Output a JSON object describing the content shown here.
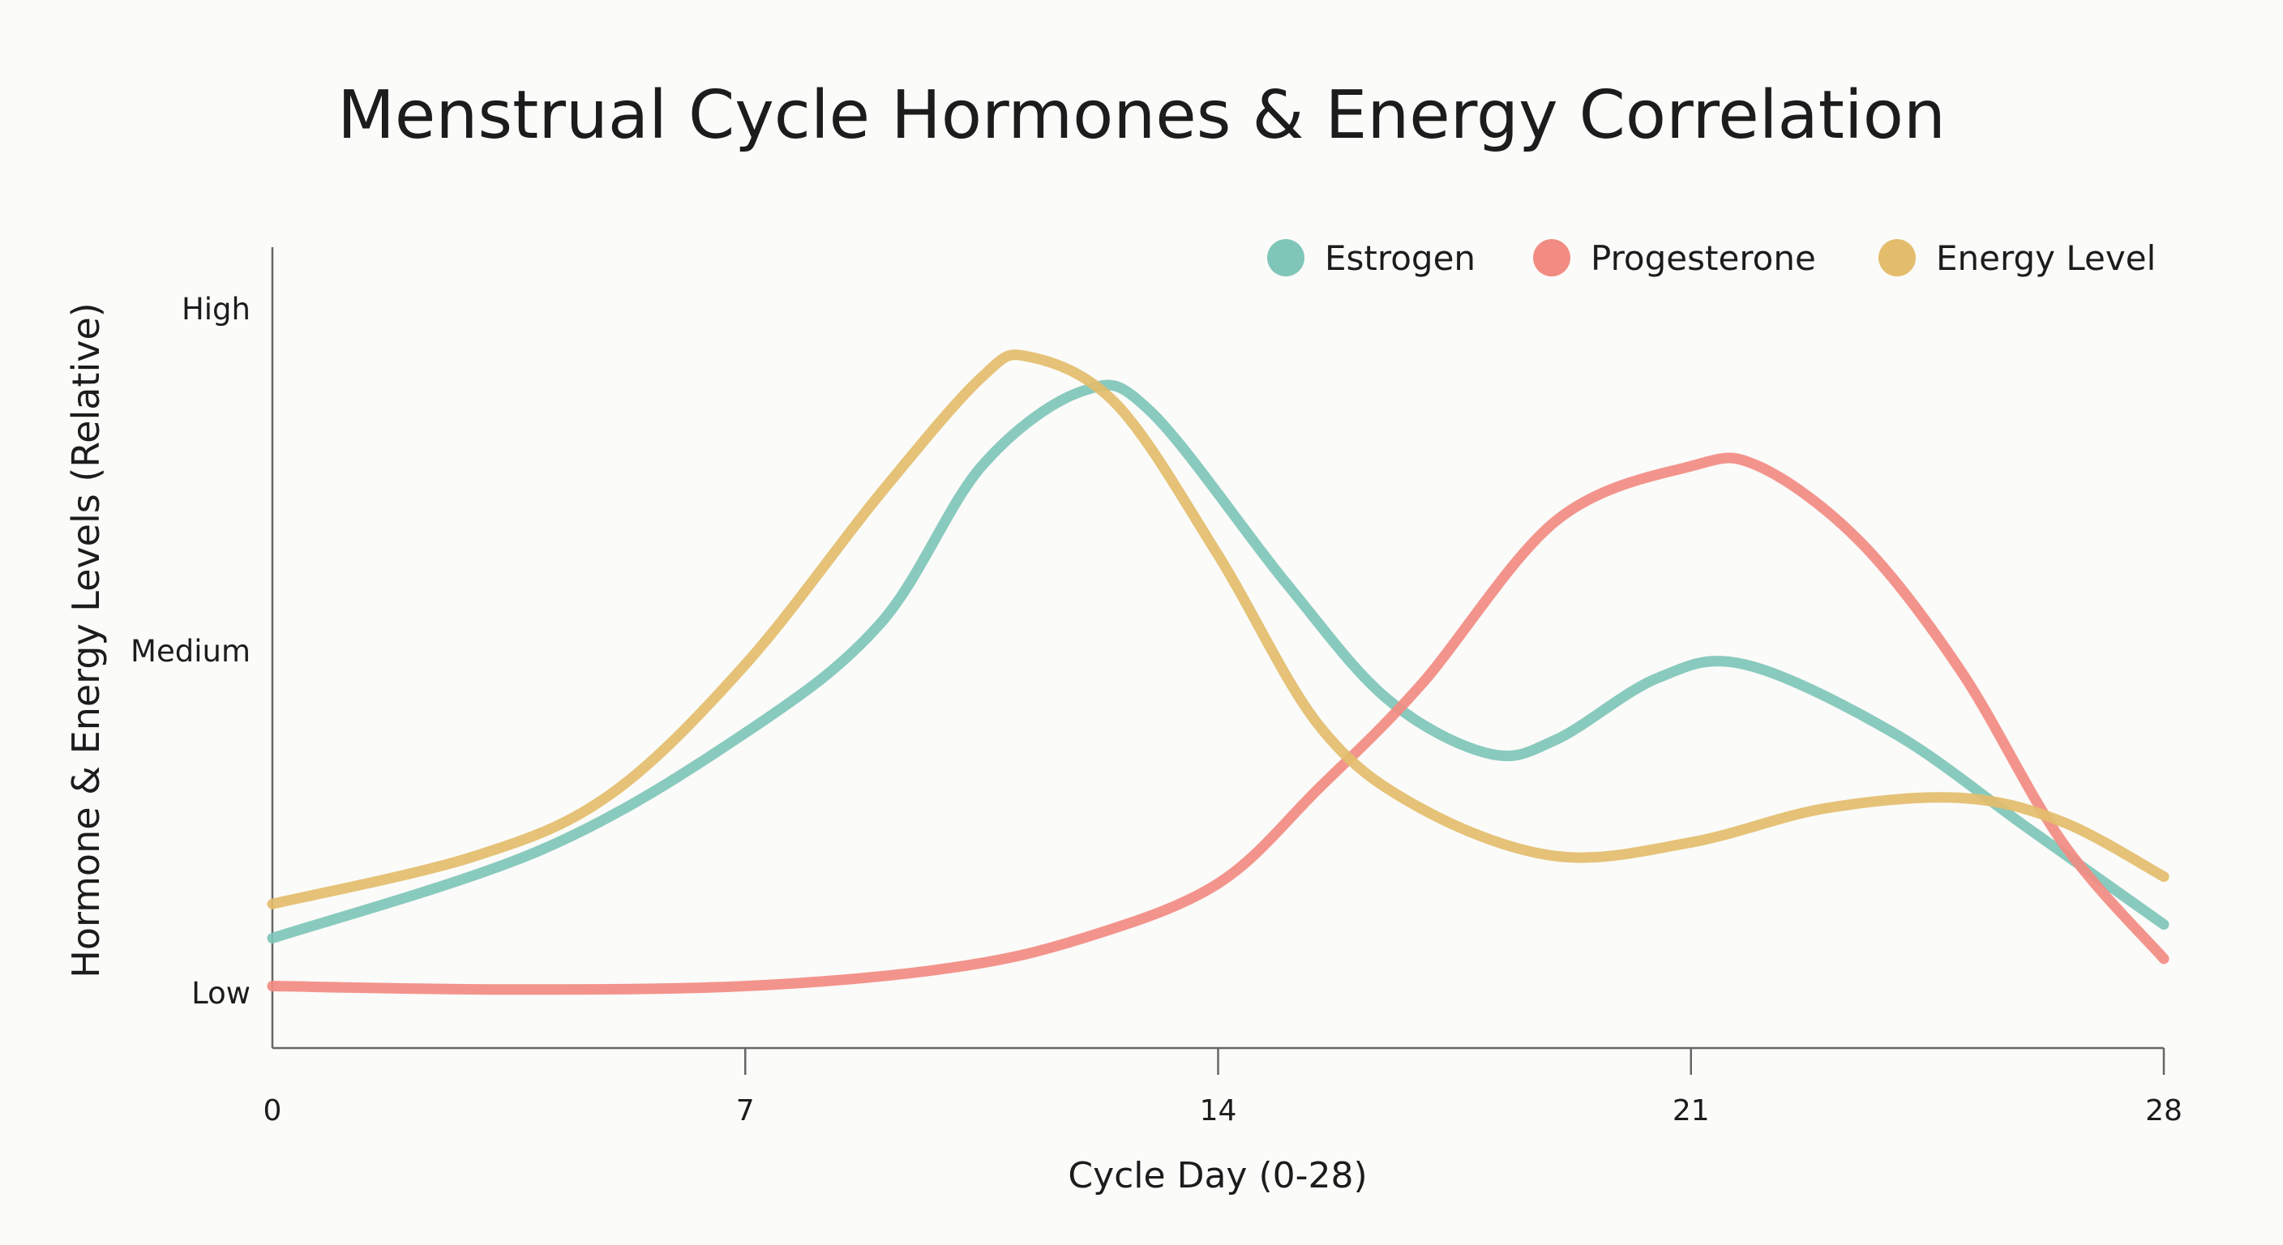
{
  "chart_data": {
    "type": "line",
    "title": "Menstrual Cycle Hormones & Energy Correlation",
    "xlabel": "Cycle Day (0-28)",
    "ylabel": "Hormone & Energy Levels (Relative)",
    "xlim": [
      0,
      28
    ],
    "ylim": [
      0,
      1
    ],
    "x_ticks": [
      0,
      7,
      14,
      21,
      28
    ],
    "x_tick_labels": [
      "0",
      "7",
      "14",
      "21",
      "28"
    ],
    "y_ticks": [
      0,
      0.5,
      1
    ],
    "y_tick_labels": [
      "Low",
      "Medium",
      "High"
    ],
    "grid": false,
    "legend_position": "top-right",
    "series": [
      {
        "name": "Estrogen",
        "color": "#7fc6b8",
        "x": [
          0,
          4,
          7,
          9,
          10.5,
          12,
          13,
          15,
          16.5,
          18,
          19,
          20.5,
          21.8,
          24,
          26,
          28
        ],
        "y": [
          0.08,
          0.21,
          0.38,
          0.54,
          0.77,
          0.88,
          0.85,
          0.6,
          0.43,
          0.35,
          0.37,
          0.46,
          0.48,
          0.38,
          0.24,
          0.1
        ]
      },
      {
        "name": "Progesterone",
        "color": "#f28b82",
        "x": [
          0,
          3.5,
          7,
          10,
          12,
          14,
          15.5,
          17,
          19,
          21,
          22,
          23.5,
          25,
          26.5,
          28
        ],
        "y": [
          0.01,
          0.005,
          0.01,
          0.036,
          0.08,
          0.16,
          0.3,
          0.45,
          0.69,
          0.77,
          0.77,
          0.66,
          0.47,
          0.22,
          0.05
        ]
      },
      {
        "name": "Energy Level",
        "color": "#e3bd6b",
        "x": [
          0,
          3,
          5,
          7,
          9,
          10.5,
          11.2,
          12.5,
          14,
          15.5,
          17,
          19,
          21,
          23,
          25,
          26.5,
          28
        ],
        "y": [
          0.13,
          0.2,
          0.29,
          0.48,
          0.73,
          0.9,
          0.93,
          0.86,
          0.64,
          0.39,
          0.27,
          0.2,
          0.22,
          0.27,
          0.285,
          0.25,
          0.17
        ]
      }
    ]
  }
}
